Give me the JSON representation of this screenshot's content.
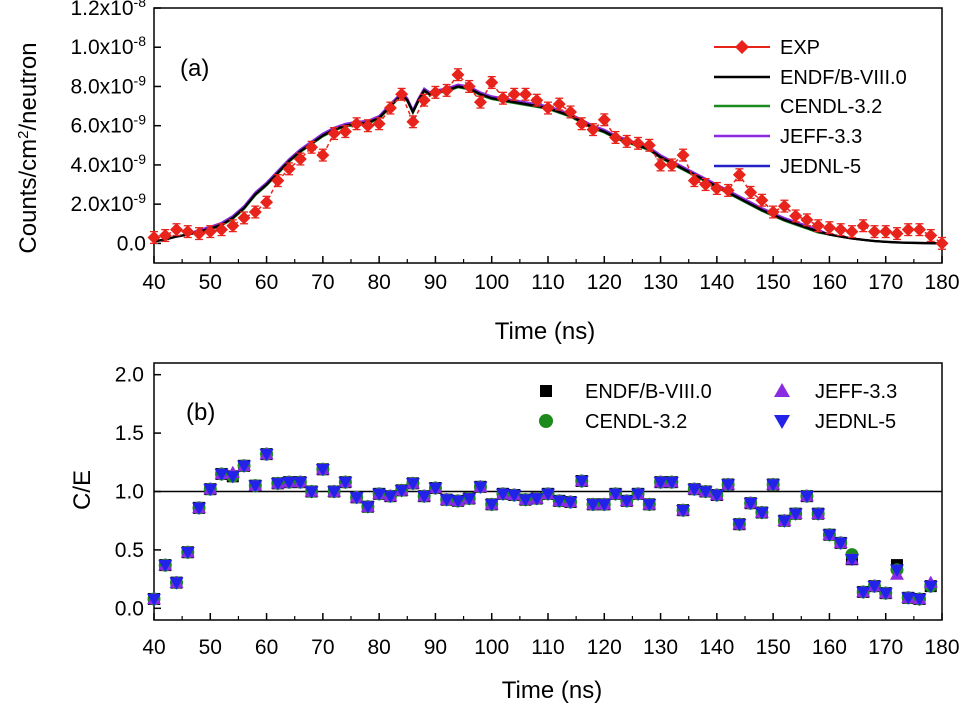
{
  "chart_data": [
    {
      "type": "line",
      "panel_label": "(a)",
      "xlabel": "Time (ns)",
      "ylabel": {
        "pre": "Counts/cm",
        "sup": "2",
        "post": "/neutron"
      },
      "xlim": [
        40,
        180
      ],
      "ylim": [
        -1e-09,
        1.2e-08
      ],
      "xticks": [
        "40",
        "50",
        "60",
        "70",
        "80",
        "90",
        "100",
        "110",
        "120",
        "130",
        "140",
        "150",
        "160",
        "170",
        "180"
      ],
      "yticks": [
        {
          "value": 0,
          "mant": "0.0",
          "exp": ""
        },
        {
          "value": 2e-09,
          "mant": "2.0x10",
          "exp": "-9"
        },
        {
          "value": 4e-09,
          "mant": "4.0x10",
          "exp": "-9"
        },
        {
          "value": 6e-09,
          "mant": "6.0x10",
          "exp": "-9"
        },
        {
          "value": 8e-09,
          "mant": "8.0x10",
          "exp": "-9"
        },
        {
          "value": 1e-08,
          "mant": "1.0x10",
          "exp": "-8"
        },
        {
          "value": 1.2e-08,
          "mant": "1.2x10",
          "exp": "-8"
        }
      ],
      "legend": [
        "EXP",
        "ENDF/B-VIII.0",
        "CENDL-3.2",
        "JEFF-3.3",
        "JEDNL-5"
      ],
      "colors": {
        "EXP": "#e8231c",
        "ENDF/B-VIII.0": "#000000",
        "CENDL-3.2": "#1c8a1c",
        "JEFF-3.3": "#8a2be2",
        "JEDNL-5": "#2222c8"
      },
      "exp": {
        "x": [
          40,
          42,
          44,
          46,
          48,
          50,
          52,
          54,
          56,
          58,
          60,
          62,
          64,
          66,
          68,
          70,
          72,
          74,
          76,
          78,
          80,
          82,
          84,
          86,
          88,
          90,
          92,
          94,
          96,
          98,
          100,
          102,
          104,
          106,
          108,
          110,
          112,
          114,
          116,
          118,
          120,
          122,
          124,
          126,
          128,
          130,
          132,
          134,
          136,
          138,
          140,
          142,
          144,
          146,
          148,
          150,
          152,
          154,
          156,
          158,
          160,
          162,
          164,
          166,
          168,
          170,
          172,
          174,
          176,
          178,
          180
        ],
        "y": [
          0.3,
          0.4,
          0.7,
          0.6,
          0.5,
          0.6,
          0.7,
          0.9,
          1.3,
          1.6,
          2.1,
          3.2,
          3.8,
          4.3,
          4.9,
          4.5,
          5.6,
          5.7,
          6.1,
          6.0,
          6.1,
          6.9,
          7.6,
          6.2,
          7.3,
          7.7,
          7.8,
          8.6,
          8.0,
          7.2,
          8.2,
          7.4,
          7.6,
          7.6,
          7.3,
          6.9,
          7.1,
          6.7,
          6.1,
          5.8,
          6.3,
          5.4,
          5.2,
          5.1,
          5.0,
          4.0,
          4.0,
          4.5,
          3.2,
          3.0,
          2.8,
          2.7,
          3.5,
          2.6,
          2.2,
          1.6,
          1.9,
          1.4,
          1.2,
          0.9,
          0.8,
          0.7,
          0.6,
          0.9,
          0.6,
          0.6,
          0.5,
          0.7,
          0.7,
          0.4,
          0.0
        ],
        "err": 0.3,
        "scale": 1e-09
      },
      "calc": {
        "x": [
          40,
          42,
          44,
          46,
          48,
          50,
          52,
          54,
          56,
          58,
          60,
          62,
          64,
          66,
          68,
          70,
          72,
          74,
          76,
          78,
          80,
          82,
          84,
          85,
          86,
          87,
          88,
          89,
          90,
          92,
          94,
          96,
          98,
          100,
          102,
          104,
          106,
          108,
          110,
          112,
          114,
          116,
          118,
          120,
          122,
          124,
          126,
          128,
          130,
          132,
          134,
          136,
          138,
          140,
          142,
          144,
          146,
          148,
          150,
          152,
          154,
          156,
          158,
          160,
          162,
          164,
          166,
          168,
          170,
          172,
          174,
          176,
          178,
          180
        ],
        "y": [
          0.1,
          0.2,
          0.35,
          0.45,
          0.6,
          0.75,
          0.95,
          1.3,
          1.8,
          2.5,
          3.0,
          3.6,
          4.2,
          4.7,
          5.1,
          5.5,
          5.8,
          6.0,
          6.1,
          6.15,
          6.4,
          7.0,
          7.6,
          7.3,
          6.7,
          7.3,
          7.8,
          7.6,
          7.7,
          7.8,
          8.0,
          7.9,
          7.6,
          7.4,
          7.3,
          7.2,
          7.1,
          7.0,
          6.9,
          6.7,
          6.5,
          6.2,
          5.9,
          5.7,
          5.4,
          5.2,
          5.0,
          4.8,
          4.4,
          4.1,
          3.8,
          3.5,
          3.2,
          2.9,
          2.6,
          2.3,
          2.0,
          1.7,
          1.45,
          1.2,
          1.0,
          0.8,
          0.6,
          0.45,
          0.35,
          0.25,
          0.18,
          0.12,
          0.08,
          0.05,
          0.03,
          0.02,
          0.01,
          0.0
        ],
        "scale": 1e-09
      }
    },
    {
      "type": "scatter",
      "panel_label": "(b)",
      "xlabel": "Time (ns)",
      "ylabel": "C/E",
      "xlim": [
        40,
        180
      ],
      "ylim": [
        -0.1,
        2.1
      ],
      "xticks": [
        "40",
        "50",
        "60",
        "70",
        "80",
        "90",
        "100",
        "110",
        "120",
        "130",
        "140",
        "150",
        "160",
        "170",
        "180"
      ],
      "yticks": [
        "0.0",
        "0.5",
        "1.0",
        "1.5",
        "2.0"
      ],
      "reference_line": 1.0,
      "legend": [
        "ENDF/B-VIII.0",
        "JEFF-3.3",
        "CENDL-3.2",
        "JEDNL-5"
      ],
      "colors": {
        "ENDF/B-VIII.0": "#000000",
        "CENDL-3.2": "#1c8a1c",
        "JEFF-3.3": "#8a2be2",
        "JEDNL-5": "#2222e8"
      },
      "x": [
        40,
        42,
        44,
        46,
        48,
        50,
        52,
        54,
        56,
        58,
        60,
        62,
        64,
        66,
        68,
        70,
        72,
        74,
        76,
        78,
        80,
        82,
        84,
        86,
        88,
        90,
        92,
        94,
        96,
        98,
        100,
        102,
        104,
        106,
        108,
        110,
        112,
        114,
        116,
        118,
        120,
        122,
        124,
        126,
        128,
        130,
        132,
        134,
        136,
        138,
        140,
        142,
        144,
        146,
        148,
        150,
        152,
        154,
        156,
        158,
        160,
        162,
        164,
        166,
        168,
        170,
        172,
        174,
        176,
        178
      ],
      "y": [
        0.08,
        0.37,
        0.22,
        0.48,
        0.86,
        1.02,
        1.15,
        1.13,
        1.22,
        1.05,
        1.32,
        1.07,
        1.08,
        1.08,
        1.0,
        1.19,
        1.0,
        1.08,
        0.95,
        0.87,
        0.98,
        0.96,
        1.01,
        1.07,
        0.96,
        1.03,
        0.93,
        0.92,
        0.94,
        1.04,
        0.89,
        0.98,
        0.97,
        0.93,
        0.94,
        0.98,
        0.92,
        0.91,
        1.09,
        0.89,
        0.89,
        0.98,
        0.92,
        0.98,
        0.89,
        1.08,
        1.08,
        0.84,
        1.02,
        1.0,
        0.97,
        1.06,
        0.72,
        0.9,
        0.82,
        1.06,
        0.75,
        0.81,
        0.96,
        0.81,
        0.63,
        0.56,
        0.42,
        0.14,
        0.19,
        0.13,
        0.33,
        0.09,
        0.08,
        0.19
      ],
      "series_offsets": {
        "ENDF/B-VIII.0": [
          0,
          0,
          0,
          0,
          0,
          0,
          0,
          0,
          0,
          0,
          0,
          0,
          0,
          0,
          0,
          0,
          0,
          0,
          0,
          0,
          0,
          0,
          0,
          0,
          0,
          0,
          0,
          0,
          0,
          0,
          0,
          0,
          0,
          0,
          0,
          0,
          0,
          0,
          0,
          0,
          0,
          0,
          0,
          0,
          0,
          0,
          0,
          0,
          0,
          0,
          0,
          0,
          0,
          0,
          0,
          0,
          0,
          0,
          0,
          0,
          0,
          0,
          0,
          0,
          0,
          0,
          0.04,
          0,
          0,
          0
        ],
        "CENDL-3.2": [
          0,
          0,
          0,
          0,
          0,
          0,
          0,
          0,
          0,
          0,
          0,
          0,
          0,
          0,
          0,
          0,
          0,
          0,
          0,
          0,
          0,
          0,
          0,
          0,
          0,
          0,
          0,
          0,
          0,
          0,
          0,
          0,
          0,
          0,
          0,
          0,
          0,
          0,
          0,
          0,
          0,
          0,
          0,
          0,
          0,
          0,
          0,
          0,
          0,
          0,
          0,
          0,
          0,
          0,
          0,
          0,
          0,
          0,
          0,
          0,
          0,
          0,
          0.04,
          0,
          0,
          0,
          0,
          0,
          0,
          0
        ],
        "JEFF-3.3": [
          0,
          0,
          0,
          0,
          0,
          0,
          0,
          0.03,
          0,
          0,
          0,
          0,
          0,
          0,
          0,
          0,
          0,
          0,
          0,
          0,
          0,
          0,
          0,
          0,
          0,
          0,
          0,
          0,
          0,
          0,
          0,
          0,
          0,
          0,
          0,
          0,
          0,
          0,
          0,
          0,
          0,
          0,
          0,
          0,
          0,
          0,
          0,
          0,
          0,
          0,
          0,
          0,
          0,
          0,
          0,
          0,
          0,
          0,
          0,
          0,
          0,
          0,
          0,
          0,
          0,
          0,
          -0.04,
          0,
          0,
          0.03
        ],
        "JEDNL-5": [
          0,
          0,
          0,
          0,
          0,
          0,
          0,
          0,
          0,
          0,
          0,
          0,
          0,
          0,
          0,
          0,
          0,
          0,
          0,
          0,
          0,
          0,
          0,
          0,
          0,
          0,
          0,
          0,
          0,
          0,
          0,
          0,
          0,
          0,
          0,
          0,
          0,
          0,
          0,
          0,
          0,
          0,
          0,
          0,
          0,
          0,
          0,
          0,
          0,
          0,
          0,
          0,
          0,
          0,
          0,
          0,
          0,
          0,
          0,
          0,
          0,
          0,
          0,
          0,
          0,
          0,
          0,
          0,
          0,
          0
        ]
      }
    }
  ]
}
